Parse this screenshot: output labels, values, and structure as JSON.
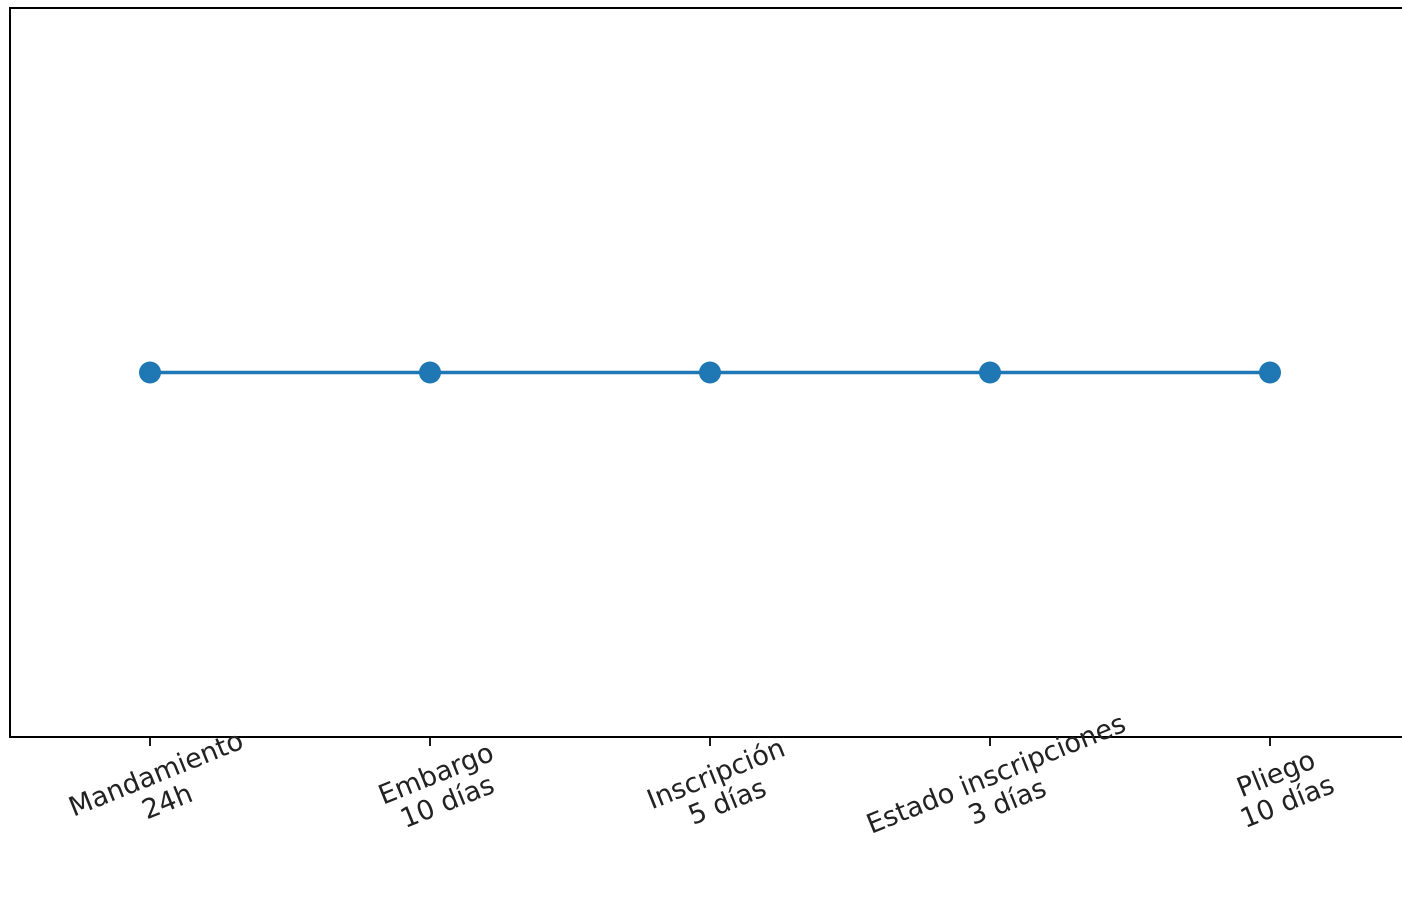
{
  "chart_data": {
    "type": "line",
    "title": "",
    "xlabel": "",
    "ylabel": "",
    "categories": [
      [
        "Mandamiento",
        "24h"
      ],
      [
        "Embargo",
        "10 días"
      ],
      [
        "Inscripción",
        "5 días"
      ],
      [
        "Estado inscripciones",
        "3 días"
      ],
      [
        "Pliego",
        "10 días"
      ]
    ],
    "x": [
      0,
      1,
      2,
      3,
      4
    ],
    "series": [
      {
        "values": [
          1,
          1,
          1,
          1,
          1
        ],
        "color": "#1f77b4",
        "marker": "circle"
      }
    ],
    "xlim": [
      -0.5,
      4.5
    ],
    "ylim": [
      0.935,
      1.065
    ],
    "y_ticks_visible": false,
    "grid": false,
    "legend": false
  }
}
